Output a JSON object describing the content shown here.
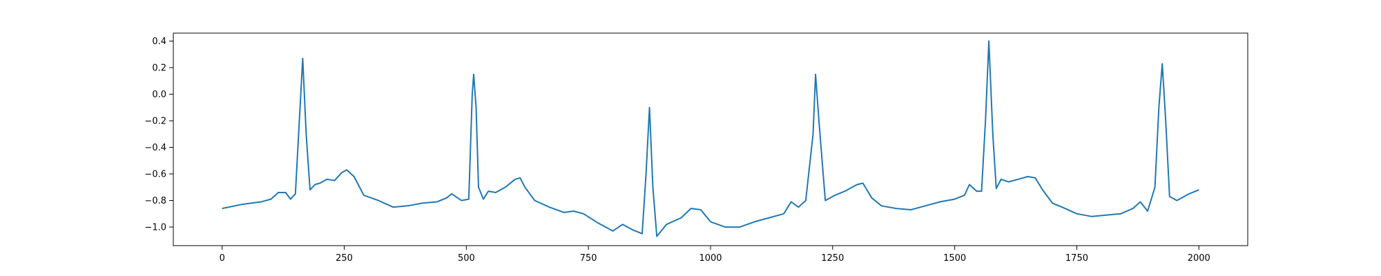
{
  "chart_data": {
    "type": "line",
    "title": "",
    "xlabel": "",
    "ylabel": "",
    "xlim": [
      -100,
      2100
    ],
    "ylim": [
      -1.14,
      0.46
    ],
    "x_ticks": [
      0,
      250,
      500,
      750,
      1000,
      1250,
      1500,
      1750,
      2000
    ],
    "x_tick_labels": [
      "0",
      "250",
      "500",
      "750",
      "1000",
      "1250",
      "1500",
      "1750",
      "2000"
    ],
    "y_ticks": [
      0.4,
      0.2,
      0.0,
      -0.2,
      -0.4,
      -0.6,
      -0.8,
      -1.0
    ],
    "y_tick_labels": [
      "0.4",
      "0.2",
      "0.0",
      "−0.2",
      "−0.4",
      "−0.6",
      "−0.8",
      "−1.0"
    ],
    "grid": false,
    "series": [
      {
        "color": "#1f77b4",
        "points": [
          [
            0,
            -0.86
          ],
          [
            40,
            -0.83
          ],
          [
            80,
            -0.81
          ],
          [
            100,
            -0.79
          ],
          [
            115,
            -0.74
          ],
          [
            130,
            -0.74
          ],
          [
            140,
            -0.79
          ],
          [
            150,
            -0.75
          ],
          [
            158,
            -0.2
          ],
          [
            165,
            0.27
          ],
          [
            172,
            -0.3
          ],
          [
            180,
            -0.72
          ],
          [
            190,
            -0.68
          ],
          [
            200,
            -0.67
          ],
          [
            215,
            -0.64
          ],
          [
            230,
            -0.65
          ],
          [
            245,
            -0.59
          ],
          [
            255,
            -0.57
          ],
          [
            270,
            -0.62
          ],
          [
            290,
            -0.76
          ],
          [
            320,
            -0.8
          ],
          [
            350,
            -0.85
          ],
          [
            380,
            -0.84
          ],
          [
            410,
            -0.82
          ],
          [
            440,
            -0.81
          ],
          [
            460,
            -0.78
          ],
          [
            470,
            -0.75
          ],
          [
            490,
            -0.8
          ],
          [
            505,
            -0.79
          ],
          [
            512,
            0.0
          ],
          [
            515,
            0.15
          ],
          [
            520,
            -0.1
          ],
          [
            525,
            -0.7
          ],
          [
            535,
            -0.79
          ],
          [
            545,
            -0.73
          ],
          [
            560,
            -0.74
          ],
          [
            580,
            -0.7
          ],
          [
            600,
            -0.64
          ],
          [
            610,
            -0.63
          ],
          [
            620,
            -0.7
          ],
          [
            640,
            -0.8
          ],
          [
            670,
            -0.85
          ],
          [
            700,
            -0.89
          ],
          [
            720,
            -0.88
          ],
          [
            740,
            -0.9
          ],
          [
            770,
            -0.97
          ],
          [
            800,
            -1.03
          ],
          [
            820,
            -0.98
          ],
          [
            840,
            -1.02
          ],
          [
            860,
            -1.05
          ],
          [
            868,
            -0.6
          ],
          [
            875,
            -0.1
          ],
          [
            882,
            -0.7
          ],
          [
            890,
            -1.07
          ],
          [
            910,
            -0.98
          ],
          [
            940,
            -0.93
          ],
          [
            960,
            -0.86
          ],
          [
            980,
            -0.87
          ],
          [
            1000,
            -0.96
          ],
          [
            1030,
            -1.0
          ],
          [
            1060,
            -1.0
          ],
          [
            1090,
            -0.96
          ],
          [
            1120,
            -0.93
          ],
          [
            1150,
            -0.9
          ],
          [
            1165,
            -0.81
          ],
          [
            1180,
            -0.85
          ],
          [
            1195,
            -0.8
          ],
          [
            1210,
            -0.3
          ],
          [
            1215,
            0.15
          ],
          [
            1222,
            -0.2
          ],
          [
            1235,
            -0.8
          ],
          [
            1255,
            -0.76
          ],
          [
            1275,
            -0.73
          ],
          [
            1300,
            -0.68
          ],
          [
            1312,
            -0.67
          ],
          [
            1330,
            -0.78
          ],
          [
            1350,
            -0.84
          ],
          [
            1380,
            -0.86
          ],
          [
            1410,
            -0.87
          ],
          [
            1440,
            -0.84
          ],
          [
            1470,
            -0.81
          ],
          [
            1500,
            -0.79
          ],
          [
            1520,
            -0.76
          ],
          [
            1530,
            -0.68
          ],
          [
            1545,
            -0.73
          ],
          [
            1555,
            -0.73
          ],
          [
            1563,
            -0.2
          ],
          [
            1570,
            0.4
          ],
          [
            1578,
            -0.3
          ],
          [
            1585,
            -0.71
          ],
          [
            1595,
            -0.64
          ],
          [
            1610,
            -0.66
          ],
          [
            1630,
            -0.64
          ],
          [
            1650,
            -0.62
          ],
          [
            1665,
            -0.63
          ],
          [
            1680,
            -0.72
          ],
          [
            1700,
            -0.82
          ],
          [
            1720,
            -0.85
          ],
          [
            1750,
            -0.9
          ],
          [
            1780,
            -0.92
          ],
          [
            1810,
            -0.91
          ],
          [
            1840,
            -0.9
          ],
          [
            1865,
            -0.86
          ],
          [
            1880,
            -0.81
          ],
          [
            1895,
            -0.88
          ],
          [
            1910,
            -0.7
          ],
          [
            1918,
            -0.1
          ],
          [
            1925,
            0.23
          ],
          [
            1932,
            -0.2
          ],
          [
            1940,
            -0.77
          ],
          [
            1955,
            -0.8
          ],
          [
            1980,
            -0.75
          ],
          [
            2000,
            -0.72
          ]
        ]
      }
    ]
  }
}
